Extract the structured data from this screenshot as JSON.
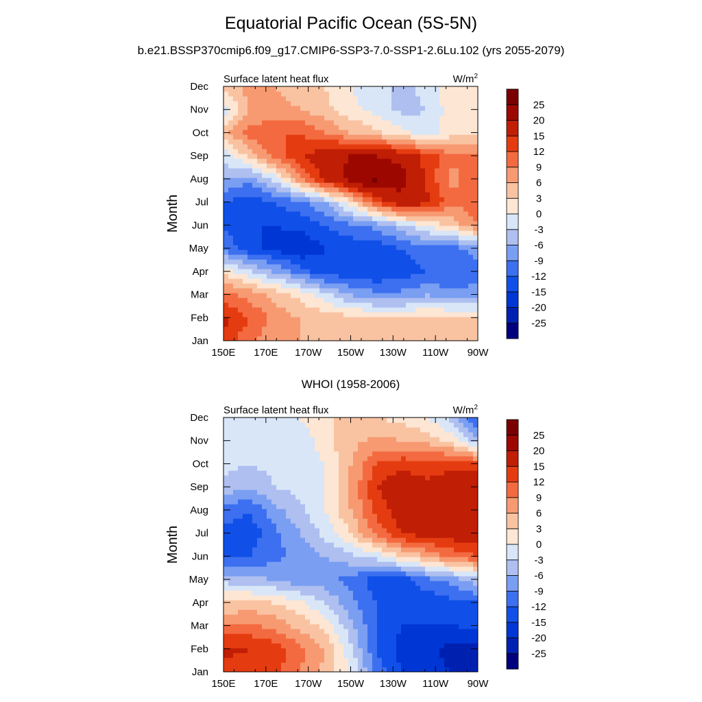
{
  "figure": {
    "title": "Equatorial Pacific Ocean (5S-5N)",
    "subtitle": "b.e21.BSSP370cmip6.f09_g17.CMIP6-SSP3-7.0-SSP1-2.6Lu.102 (yrs 2055-2079)"
  },
  "chart_data": [
    {
      "type": "heatmap",
      "title": "",
      "left_label": "Surface latent heat flux",
      "right_label": "W/m",
      "right_label_sup": "2",
      "ylabel": "Month",
      "x_ticks": [
        "150E",
        "170E",
        "170W",
        "150W",
        "130W",
        "110W",
        "90W"
      ],
      "y_ticks": [
        "Jan",
        "Feb",
        "Mar",
        "Apr",
        "May",
        "Jun",
        "Jul",
        "Aug",
        "Sep",
        "Oct",
        "Nov",
        "Dec"
      ],
      "levels": [
        -25,
        -20,
        -15,
        -12,
        -9,
        -6,
        -3,
        0,
        3,
        6,
        9,
        12,
        15,
        20,
        25
      ],
      "colors": [
        "#00007f",
        "#0020b0",
        "#0036d4",
        "#1050e8",
        "#3c70f0",
        "#7a9ef2",
        "#aebff0",
        "#d8e6f8",
        "#fde6d3",
        "#f9c3a2",
        "#f79a72",
        "#f46a40",
        "#e43c10",
        "#c01e05",
        "#9c0800",
        "#7a0000"
      ],
      "grid": [
        [
          14,
          10,
          7,
          6,
          5,
          4,
          3,
          3,
          3,
          3,
          4
        ],
        [
          16,
          12,
          8,
          6,
          5,
          4,
          3,
          3,
          4,
          4,
          4
        ],
        [
          10,
          8,
          5,
          2,
          -2,
          -6,
          -8,
          -8,
          -6,
          -8,
          -8
        ],
        [
          2,
          -2,
          -6,
          -10,
          -14,
          -14,
          -15,
          -14,
          -12,
          -12,
          -10
        ],
        [
          -10,
          -14,
          -16,
          -18,
          -15,
          -14,
          -14,
          -12,
          -10,
          -10,
          -8
        ],
        [
          -12,
          -15,
          -15,
          -14,
          -12,
          -10,
          -8,
          -4,
          0,
          4,
          9
        ],
        [
          -12,
          -14,
          -12,
          -10,
          -6,
          2,
          12,
          18,
          16,
          10,
          11
        ],
        [
          -6,
          -8,
          -2,
          8,
          16,
          22,
          26,
          22,
          14,
          8,
          11
        ],
        [
          -2,
          4,
          10,
          14,
          18,
          20,
          20,
          18,
          14,
          10,
          9
        ],
        [
          5,
          10,
          12,
          12,
          9,
          6,
          4,
          1,
          -2,
          2,
          3
        ],
        [
          -2,
          6,
          7,
          6,
          4,
          1,
          -1,
          -4,
          -3,
          2,
          3
        ],
        [
          4,
          7,
          6,
          5,
          3,
          0,
          -2,
          -4,
          -2,
          2,
          3
        ]
      ]
    },
    {
      "type": "heatmap",
      "title": "WHOI (1958-2006)",
      "left_label": "Surface latent heat flux",
      "right_label": "W/m",
      "right_label_sup": "2",
      "ylabel": "Month",
      "x_ticks": [
        "150E",
        "170E",
        "170W",
        "150W",
        "130W",
        "110W",
        "90W"
      ],
      "y_ticks": [
        "Jan",
        "Feb",
        "Mar",
        "Apr",
        "May",
        "Jun",
        "Jul",
        "Aug",
        "Sep",
        "Oct",
        "Nov",
        "Dec"
      ],
      "levels": [
        -25,
        -20,
        -15,
        -12,
        -9,
        -6,
        -3,
        0,
        3,
        6,
        9,
        12,
        15,
        20,
        25
      ],
      "colors": [
        "#00007f",
        "#0020b0",
        "#0036d4",
        "#1050e8",
        "#3c70f0",
        "#7a9ef2",
        "#aebff0",
        "#d8e6f8",
        "#fde6d3",
        "#f9c3a2",
        "#f79a72",
        "#f46a40",
        "#e43c10",
        "#c01e05",
        "#9c0800",
        "#7a0000"
      ],
      "grid": [
        [
          14,
          13,
          13,
          9,
          5,
          0,
          -10,
          -15,
          -18,
          -20,
          -22
        ],
        [
          16,
          15,
          14,
          10,
          6,
          -2,
          -12,
          -16,
          -18,
          -22,
          -22
        ],
        [
          9,
          10,
          8,
          5,
          2,
          -5,
          -12,
          -15,
          -15,
          -15,
          -14
        ],
        [
          3,
          4,
          3,
          1,
          -3,
          -8,
          -12,
          -14,
          -14,
          -13,
          -12
        ],
        [
          -4,
          -5,
          -6,
          -8,
          -8,
          -10,
          -14,
          -14,
          -10,
          -8,
          -4
        ],
        [
          -12,
          -12,
          -10,
          -8,
          -6,
          -4,
          -2,
          3,
          6,
          10,
          12
        ],
        [
          -13,
          -14,
          -10,
          -6,
          -2,
          3,
          10,
          15,
          17,
          17,
          18
        ],
        [
          -10,
          -12,
          -7,
          -4,
          0,
          6,
          13,
          17,
          16,
          17,
          20
        ],
        [
          -4,
          -6,
          -3,
          -2,
          0,
          6,
          15,
          18,
          16,
          18,
          20
        ],
        [
          -2,
          -3,
          -2,
          -2,
          0,
          6,
          12,
          14,
          13,
          14,
          13
        ],
        [
          -3,
          -2,
          -2,
          -3,
          2,
          5,
          7,
          6,
          5,
          2,
          -5
        ],
        [
          0,
          0,
          -2,
          0,
          3,
          3,
          3,
          2,
          0,
          -4,
          -12
        ]
      ]
    }
  ]
}
